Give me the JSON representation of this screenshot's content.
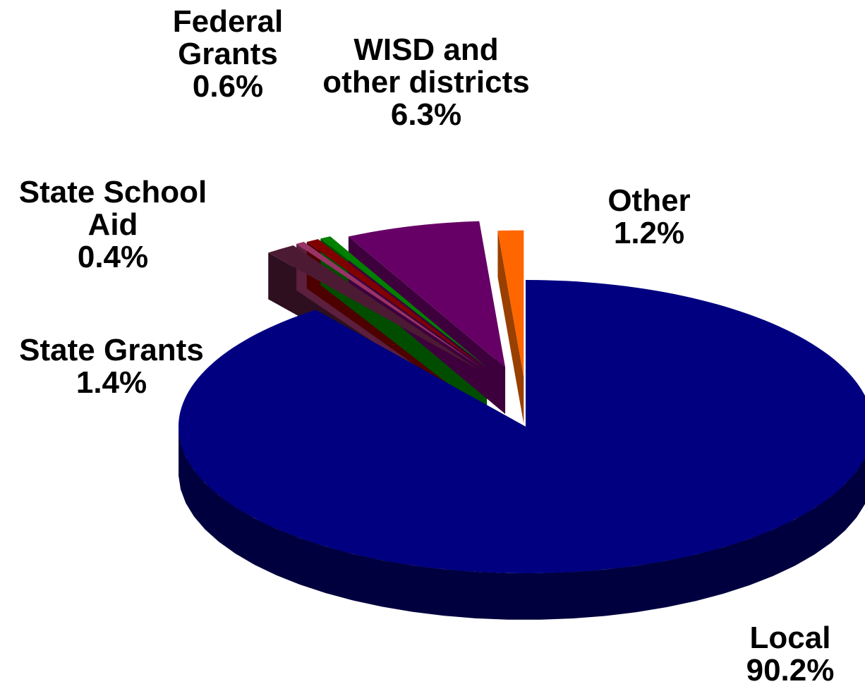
{
  "chart_data": {
    "type": "pie",
    "style": "3d-exploded",
    "title": "",
    "slices": [
      {
        "name": "Local",
        "value": 90.2,
        "label_lines": [
          "Local"
        ],
        "value_text": "90.2%",
        "color": "#000080",
        "side_color": "#00003f"
      },
      {
        "name": "State Grants",
        "value": 1.4,
        "label_lines": [
          "State Grants"
        ],
        "value_text": "1.4%",
        "color": "#4d1a33",
        "side_color": "#2e0f1f"
      },
      {
        "name": "State School Aid",
        "value": 0.4,
        "label_lines": [
          "State School",
          "Aid"
        ],
        "value_text": "0.4%",
        "color": "#993366",
        "side_color": "#5c1f3d"
      },
      {
        "name": "Federal Grants",
        "value": 0.6,
        "label_lines": [
          "Federal",
          "Grants"
        ],
        "value_text": "0.6%",
        "color": "#800000",
        "side_color": "#4d0000"
      },
      {
        "name": "Green slice",
        "value": 0.5,
        "label_lines": [],
        "value_text": "",
        "color": "#008000",
        "side_color": "#004d00"
      },
      {
        "name": "WISD and other districts",
        "value": 6.3,
        "label_lines": [
          "WISD and",
          "other districts"
        ],
        "value_text": "6.3%",
        "color": "#660066",
        "side_color": "#3d003d"
      },
      {
        "name": "Other",
        "value": 1.2,
        "label_lines": [
          "Other"
        ],
        "value_text": "1.2%",
        "color": "#ff6600",
        "side_color": "#994000"
      }
    ]
  }
}
